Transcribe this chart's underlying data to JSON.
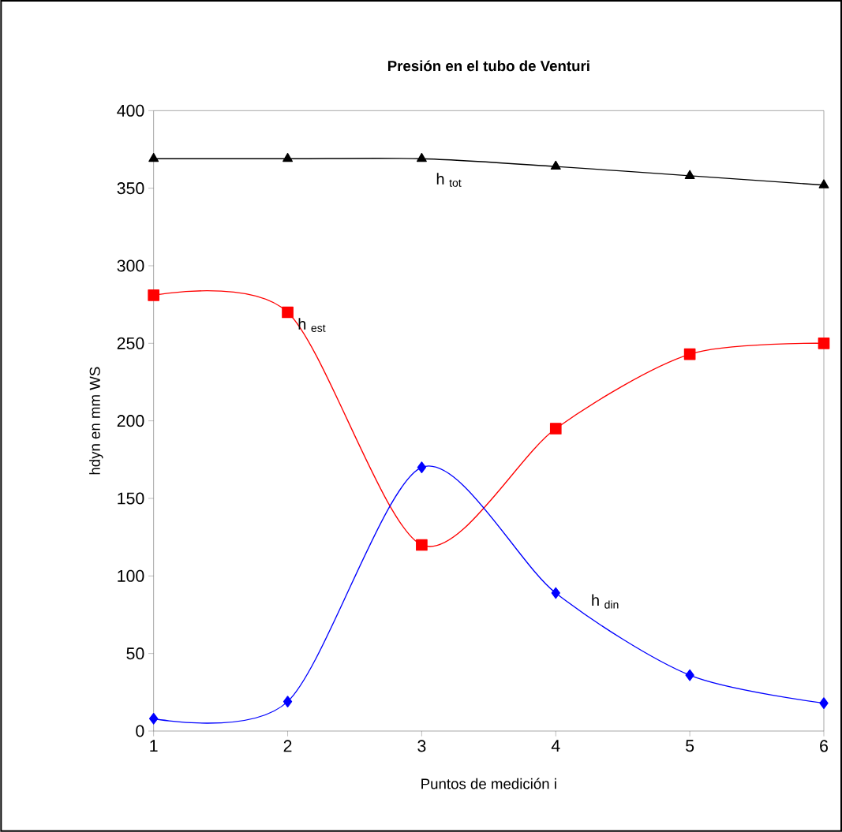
{
  "chart_data": {
    "type": "line",
    "title": "**Presión en el tubo de Venturi**",
    "xlabel": "Puntos de medición i",
    "ylabel": "hdyn en mm WS",
    "x": [
      1,
      2,
      3,
      4,
      5,
      6
    ],
    "xlim": [
      1,
      6
    ],
    "xticks": [
      1,
      2,
      3,
      4,
      5,
      6
    ],
    "ylim": [
      0,
      400
    ],
    "yticks": [
      0,
      50,
      100,
      150,
      200,
      250,
      300,
      350,
      400
    ],
    "grid": false,
    "line_style": "solid",
    "series": [
      {
        "name": "h $_{tot}$",
        "color": "#000000",
        "marker": "triangle",
        "values": [
          369,
          369,
          369,
          364,
          358,
          352
        ]
      },
      {
        "name": "h $_{est}$",
        "color": "#ff0000",
        "marker": "square",
        "values": [
          281,
          270,
          120,
          195,
          243,
          250
        ]
      },
      {
        "name": "h $_{din}$",
        "color": "#0000ff",
        "marker": "diamond",
        "values": [
          8,
          19,
          170,
          89,
          36,
          18
        ]
      }
    ]
  }
}
